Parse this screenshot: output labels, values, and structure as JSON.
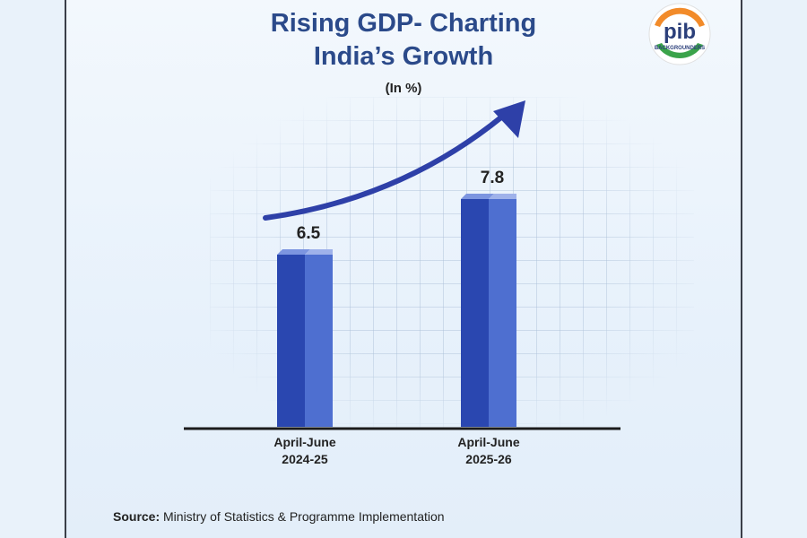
{
  "header": {
    "title_line1": "Rising GDP- Charting",
    "title_line2": "India’s Growth",
    "unit": "(In %)"
  },
  "logo": {
    "mark": "pib",
    "subtext": "BACKGROUNDERS",
    "icon": "pib-logo-icon"
  },
  "footer": {
    "source_label": "Source:",
    "source_text": " Ministry of Statistics & Programme Implementation"
  },
  "colors": {
    "title": "#2b4a8a",
    "bar_front": "#2a47b0",
    "bar_side": "#4e6fd0",
    "bar_top": "#7c95e0",
    "arrow": "#2e40a8"
  },
  "chart_data": {
    "type": "bar",
    "title": "Rising GDP- Charting India’s Growth",
    "subtitle": "(In %)",
    "categories": [
      {
        "line1": "April-June",
        "line2": "2024-25"
      },
      {
        "line1": "April-June",
        "line2": "2025-26"
      }
    ],
    "values": [
      6.5,
      7.8
    ],
    "ylim": [
      0,
      10
    ],
    "grid": true,
    "annotation": "upward-trend-arrow"
  }
}
